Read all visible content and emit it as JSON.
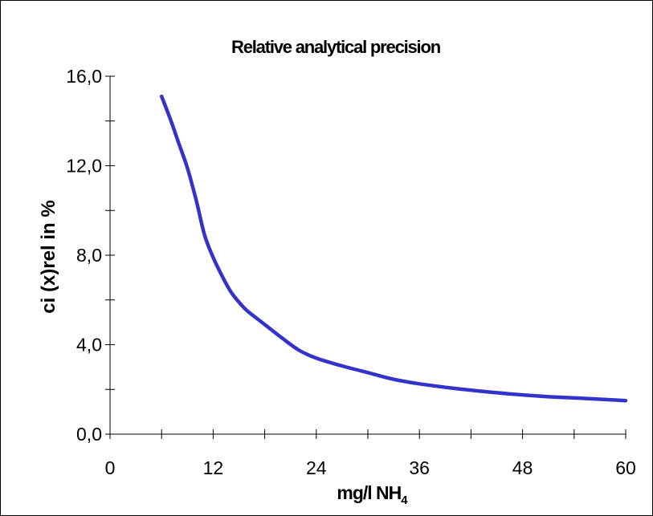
{
  "chart_data": {
    "type": "line",
    "title": "Relative analytical precision",
    "xlabel": "mg/l NH",
    "xlabel_subscript": "4",
    "ylabel": "ci (x)rel in %",
    "xlim": [
      0,
      60
    ],
    "ylim": [
      0,
      16
    ],
    "x_ticks": [
      0,
      12,
      24,
      36,
      48,
      60
    ],
    "x_tick_labels": [
      "0",
      "12",
      "24",
      "36",
      "48",
      "60"
    ],
    "x_minor_step": 6,
    "y_ticks": [
      0,
      4,
      8,
      12,
      16
    ],
    "y_tick_labels": [
      "0,0",
      "4,0",
      "8,0",
      "12,0",
      "16,0"
    ],
    "y_minor_step": 2,
    "grid": false,
    "series": [
      {
        "color": "#3333cc",
        "x": [
          6,
          7,
          8,
          9,
          10,
          11,
          12,
          13,
          14,
          15,
          16,
          18,
          20,
          22,
          24,
          27,
          30,
          33,
          36,
          40,
          45,
          50,
          55,
          60
        ],
        "y": [
          15.1,
          14.1,
          13.0,
          11.9,
          10.5,
          8.9,
          7.9,
          7.1,
          6.4,
          5.9,
          5.5,
          4.9,
          4.3,
          3.75,
          3.4,
          3.05,
          2.75,
          2.45,
          2.25,
          2.05,
          1.85,
          1.7,
          1.6,
          1.5
        ]
      }
    ]
  }
}
